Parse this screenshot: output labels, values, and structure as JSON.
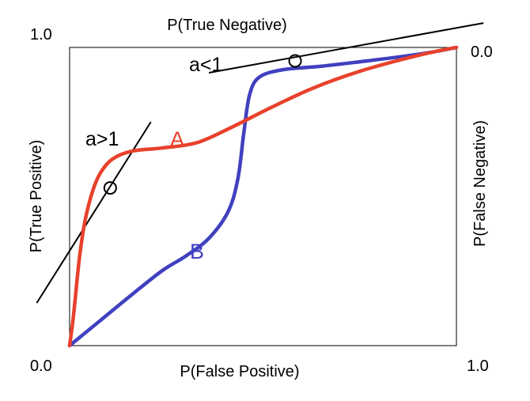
{
  "chart_data": {
    "type": "line",
    "title": "",
    "xlabel": "P(False Positive)",
    "ylabel": "P(True Positive)",
    "top_label": "P(True Negative)",
    "right_label": "P(False Negative)",
    "xlim": [
      0,
      1
    ],
    "ylim": [
      0,
      1
    ],
    "grid": false,
    "ticks": {
      "bottom_left": "0.0",
      "bottom_right": "1.0",
      "top_left": "1.0",
      "top_right": "0.0"
    },
    "series": [
      {
        "name": "A",
        "color": "#e8412c",
        "points": [
          [
            0,
            0
          ],
          [
            0.01,
            0.1
          ],
          [
            0.025,
            0.29
          ],
          [
            0.04,
            0.42
          ],
          [
            0.06,
            0.52
          ],
          [
            0.08,
            0.58
          ],
          [
            0.11,
            0.625
          ],
          [
            0.16,
            0.652
          ],
          [
            0.24,
            0.663
          ],
          [
            0.33,
            0.681
          ],
          [
            0.42,
            0.733
          ],
          [
            0.52,
            0.798
          ],
          [
            0.63,
            0.864
          ],
          [
            0.75,
            0.92
          ],
          [
            0.86,
            0.96
          ],
          [
            0.94,
            0.985
          ],
          [
            1,
            1
          ]
        ]
      },
      {
        "name": "B",
        "color": "#4040c0",
        "points": [
          [
            0,
            0
          ],
          [
            0.08,
            0.085
          ],
          [
            0.16,
            0.17
          ],
          [
            0.24,
            0.252
          ],
          [
            0.3,
            0.3
          ],
          [
            0.36,
            0.36
          ],
          [
            0.41,
            0.45
          ],
          [
            0.435,
            0.56
          ],
          [
            0.45,
            0.71
          ],
          [
            0.465,
            0.84
          ],
          [
            0.49,
            0.9
          ],
          [
            0.55,
            0.925
          ],
          [
            0.65,
            0.937
          ],
          [
            0.75,
            0.952
          ],
          [
            0.85,
            0.968
          ],
          [
            0.94,
            0.985
          ],
          [
            1,
            1
          ]
        ]
      }
    ],
    "tangents": [
      {
        "label": "a>1",
        "point": [
          0.105,
          0.529
        ],
        "line_from": [
          -0.085,
          0.143
        ],
        "line_to": [
          0.21,
          0.75
        ]
      },
      {
        "label": "a<1",
        "point": [
          0.583,
          0.955
        ],
        "line_from": [
          0.36,
          0.915
        ],
        "line_to": [
          1.07,
          1.082
        ]
      }
    ]
  }
}
